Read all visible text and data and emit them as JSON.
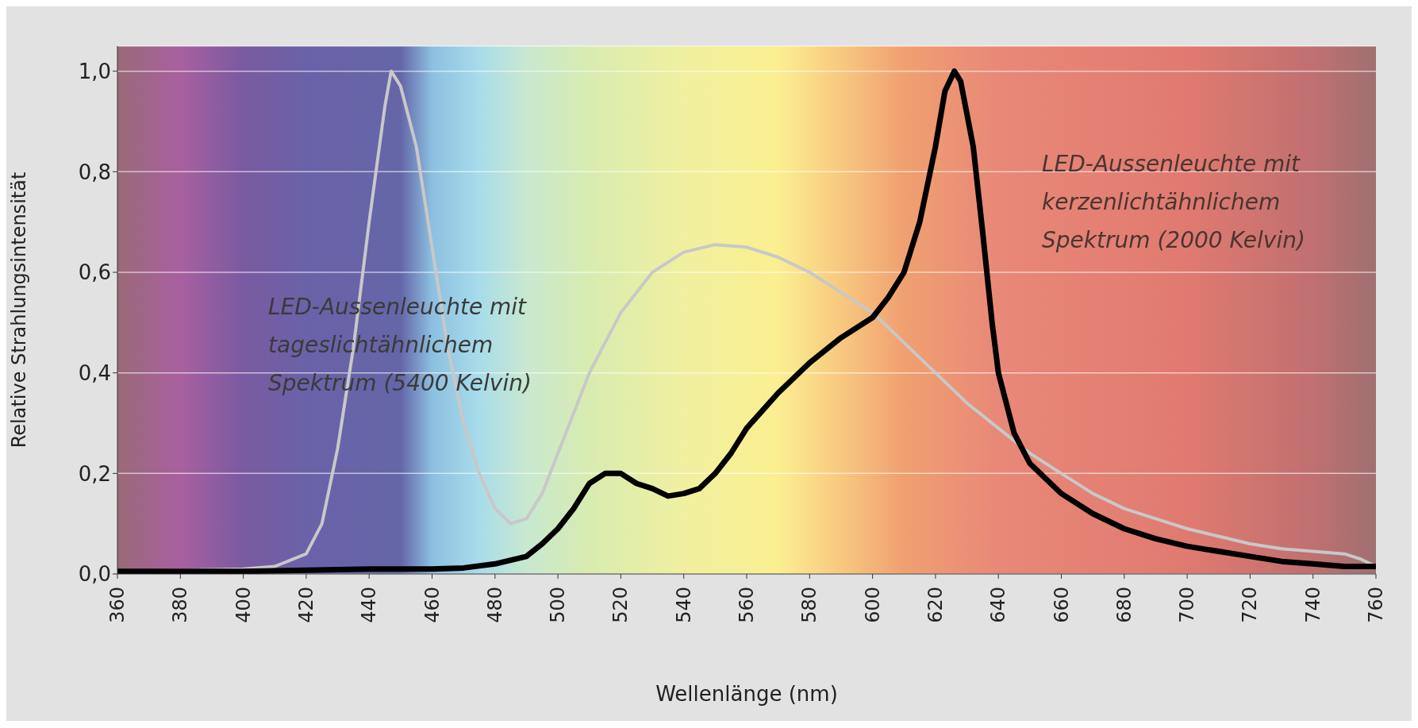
{
  "chart_data": {
    "type": "line",
    "xlabel": "Wellenlänge (nm)",
    "ylabel": "Relative Strahlungsintensität",
    "xlim": [
      360,
      760
    ],
    "xticks": [
      360,
      380,
      400,
      420,
      440,
      460,
      480,
      500,
      520,
      540,
      560,
      580,
      600,
      620,
      640,
      660,
      680,
      700,
      720,
      740,
      760
    ],
    "ylim": [
      0,
      1.05
    ],
    "yticks": [
      {
        "value": 0,
        "label": "0,0"
      },
      {
        "value": 0.2,
        "label": "0,2"
      },
      {
        "value": 0.4,
        "label": "0,4"
      },
      {
        "value": 0.6,
        "label": "0,6"
      },
      {
        "value": 0.8,
        "label": "0,8"
      },
      {
        "value": 1,
        "label": "1,0"
      }
    ],
    "grid": "y",
    "series": [
      {
        "name": "LED-Aussenleuchte mit tageslichtähnlichem Spektrum (5400 Kelvin)",
        "color": "#c8c8c8",
        "x": [
          360,
          400,
          410,
          420,
          425,
          430,
          435,
          440,
          445,
          447,
          450,
          455,
          460,
          465,
          470,
          475,
          480,
          485,
          490,
          495,
          500,
          510,
          520,
          530,
          540,
          550,
          560,
          570,
          580,
          590,
          600,
          610,
          620,
          630,
          640,
          650,
          660,
          670,
          680,
          690,
          700,
          710,
          720,
          730,
          740,
          750,
          755,
          760
        ],
        "values": [
          0.005,
          0.01,
          0.015,
          0.04,
          0.1,
          0.25,
          0.45,
          0.7,
          0.93,
          1.0,
          0.97,
          0.85,
          0.65,
          0.45,
          0.3,
          0.2,
          0.13,
          0.1,
          0.11,
          0.16,
          0.24,
          0.4,
          0.52,
          0.6,
          0.64,
          0.655,
          0.65,
          0.63,
          0.6,
          0.56,
          0.52,
          0.46,
          0.4,
          0.34,
          0.29,
          0.24,
          0.2,
          0.16,
          0.13,
          0.11,
          0.09,
          0.075,
          0.06,
          0.05,
          0.045,
          0.04,
          0.03,
          0.015
        ]
      },
      {
        "name": "LED-Aussenleuchte mit kerzenlichtähnlichem Spektrum (2000 Kelvin)",
        "color": "#000000",
        "x": [
          360,
          400,
          440,
          460,
          470,
          480,
          490,
          495,
          500,
          505,
          510,
          515,
          520,
          525,
          530,
          535,
          540,
          545,
          550,
          555,
          560,
          570,
          580,
          590,
          600,
          605,
          610,
          615,
          620,
          623,
          626,
          628,
          632,
          635,
          638,
          640,
          645,
          650,
          660,
          670,
          680,
          690,
          700,
          710,
          720,
          730,
          740,
          750,
          760
        ],
        "values": [
          0.005,
          0.005,
          0.01,
          0.01,
          0.012,
          0.02,
          0.035,
          0.06,
          0.09,
          0.13,
          0.18,
          0.2,
          0.2,
          0.18,
          0.17,
          0.155,
          0.16,
          0.17,
          0.2,
          0.24,
          0.29,
          0.36,
          0.42,
          0.47,
          0.51,
          0.55,
          0.6,
          0.7,
          0.85,
          0.96,
          1.0,
          0.98,
          0.85,
          0.68,
          0.5,
          0.4,
          0.28,
          0.22,
          0.16,
          0.12,
          0.09,
          0.07,
          0.055,
          0.045,
          0.035,
          0.025,
          0.02,
          0.015,
          0.015
        ]
      }
    ]
  }
}
